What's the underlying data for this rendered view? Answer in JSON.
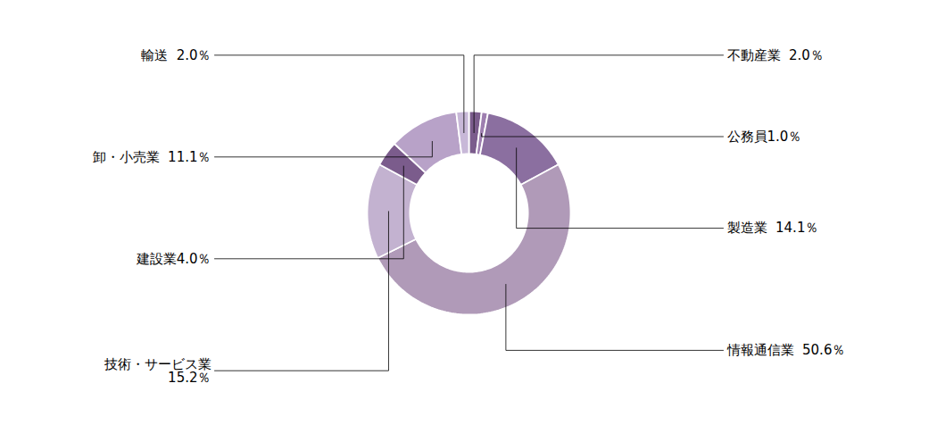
{
  "chart_data": {
    "type": "donut",
    "categories": [
      "不動産業  2.0％",
      "公務員1.0％",
      "製造業  14.1％",
      "情報通信業  50.6％",
      "技術・サービス業\n15.2％",
      "建設業4.0％",
      "卸・小売業  11.1％",
      "輸送  2.0％"
    ],
    "values": [
      2.0,
      1.0,
      14.1,
      50.6,
      15.2,
      4.0,
      11.1,
      2.0
    ],
    "colors": [
      "#7b5c8c",
      "#9e7fb0",
      "#8b6fa0",
      "#b09ab8",
      "#c3b2d0",
      "#7b5c8c",
      "#b8a2c8",
      "#c8b8d8"
    ],
    "tick_labels": false
  }
}
